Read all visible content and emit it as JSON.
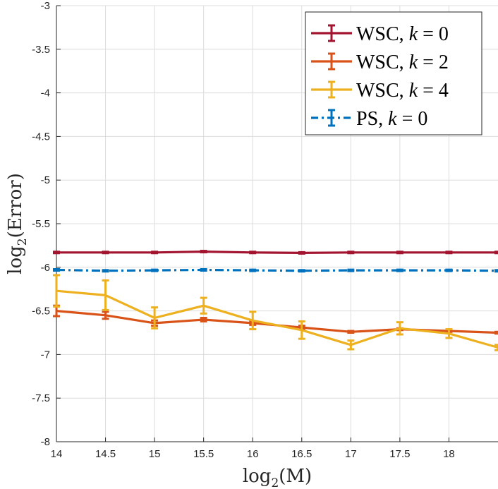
{
  "chart_data": {
    "type": "line",
    "title": "",
    "xlabel": {
      "base": "log",
      "sub": "2",
      "arg": "(M)"
    },
    "ylabel": {
      "base": "log",
      "sub": "2",
      "arg": "(Error)"
    },
    "xlim": [
      14,
      18.5
    ],
    "ylim": [
      -8,
      -3
    ],
    "xticks": [
      14,
      14.5,
      15,
      15.5,
      16,
      16.5,
      17,
      17.5,
      18
    ],
    "xtick_labels": [
      "14",
      "14.5",
      "15",
      "15.5",
      "16",
      "16.5",
      "17",
      "17.5",
      "18"
    ],
    "yticks": [
      -8,
      -7.5,
      -7,
      -6.5,
      -6,
      -5.5,
      -5,
      -4.5,
      -4,
      -3.5,
      -3
    ],
    "ytick_labels": [
      "-8",
      "-7.5",
      "-7",
      "-6.5",
      "-6",
      "-5.5",
      "-5",
      "-4.5",
      "-4",
      "-3.5",
      "-3"
    ],
    "grid": true,
    "legend_position": "top-right",
    "x": [
      14,
      14.5,
      15,
      15.5,
      16,
      16.5,
      17,
      17.5,
      18,
      18.5
    ],
    "series": [
      {
        "name": "WSC, k = 0",
        "legend": {
          "pre": "WSC, ",
          "var": "k",
          "post": " = 0"
        },
        "color": "#A2142F",
        "dash": "solid",
        "values": [
          -5.83,
          -5.83,
          -5.83,
          -5.82,
          -5.83,
          -5.835,
          -5.83,
          -5.83,
          -5.83,
          -5.83
        ],
        "errors": [
          0.008,
          0.008,
          0.008,
          0.008,
          0.008,
          0.008,
          0.008,
          0.008,
          0.008,
          0.008
        ]
      },
      {
        "name": "WSC, k = 2",
        "legend": {
          "pre": "WSC, ",
          "var": "k",
          "post": " = 2"
        },
        "color": "#D95319",
        "dash": "solid",
        "values": [
          -6.5,
          -6.55,
          -6.64,
          -6.6,
          -6.64,
          -6.69,
          -6.74,
          -6.71,
          -6.73,
          -6.75
        ],
        "errors": [
          0.06,
          0.04,
          0.03,
          0.02,
          0.02,
          0.02,
          0.01,
          0.01,
          0.01,
          0.01
        ]
      },
      {
        "name": "WSC, k = 4",
        "legend": {
          "pre": "WSC, ",
          "var": "k",
          "post": " = 4"
        },
        "color": "#EDB120",
        "dash": "solid",
        "values": [
          -6.27,
          -6.32,
          -6.58,
          -6.44,
          -6.61,
          -6.72,
          -6.89,
          -6.7,
          -6.76,
          -6.92
        ],
        "errors": [
          0.18,
          0.17,
          0.12,
          0.09,
          0.1,
          0.1,
          0.05,
          0.07,
          0.05,
          0.03
        ]
      },
      {
        "name": "PS, k = 0",
        "legend": {
          "pre": "PS, ",
          "var": "k",
          "post": " = 0"
        },
        "color": "#0072BD",
        "dash": "dashdot",
        "values": [
          -6.03,
          -6.04,
          -6.035,
          -6.03,
          -6.035,
          -6.04,
          -6.035,
          -6.035,
          -6.035,
          -6.04
        ],
        "errors": [
          0.008,
          0.008,
          0.008,
          0.008,
          0.008,
          0.008,
          0.008,
          0.008,
          0.008,
          0.008
        ]
      }
    ]
  }
}
